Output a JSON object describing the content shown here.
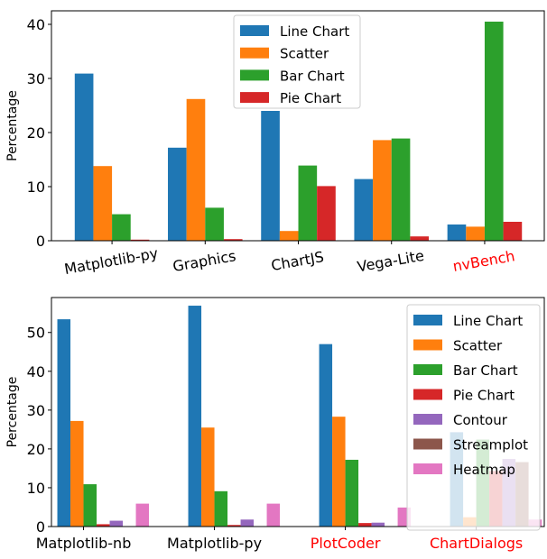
{
  "chart_data": [
    {
      "type": "bar",
      "ylabel": "Percentage",
      "xlabel": "",
      "ylim": [
        0,
        42.5
      ],
      "yticks": [
        0,
        10,
        20,
        30,
        40
      ],
      "categories": [
        "Matplotlib-py",
        "Graphics",
        "ChartJS",
        "Vega-Lite",
        "nvBench"
      ],
      "category_colors": [
        "#000000",
        "#000000",
        "#000000",
        "#000000",
        "#ff0000"
      ],
      "legend_position": "upper-center",
      "series": [
        {
          "name": "Line Chart",
          "color": "#1f77b4",
          "values": [
            30.9,
            17.2,
            24.0,
            11.4,
            3.0
          ]
        },
        {
          "name": "Scatter",
          "color": "#ff7f0e",
          "values": [
            13.8,
            26.2,
            1.8,
            18.6,
            2.6
          ]
        },
        {
          "name": "Bar Chart",
          "color": "#2ca02c",
          "values": [
            4.9,
            6.1,
            13.9,
            18.9,
            40.5
          ]
        },
        {
          "name": "Pie Chart",
          "color": "#d62728",
          "values": [
            0.2,
            0.3,
            10.1,
            0.8,
            3.5
          ]
        }
      ]
    },
    {
      "type": "bar",
      "ylabel": "Percentage",
      "xlabel": "",
      "ylim": [
        0,
        59
      ],
      "yticks": [
        0,
        10,
        20,
        30,
        40,
        50
      ],
      "categories": [
        "Matplotlib-nb",
        "Matplotlib-py",
        "PlotCoder",
        "ChartDialogs"
      ],
      "category_colors": [
        "#000000",
        "#000000",
        "#ff0000",
        "#ff0000"
      ],
      "legend_position": "upper-right",
      "series": [
        {
          "name": "Line Chart",
          "color": "#1f77b4",
          "values": [
            53.4,
            56.9,
            47.0,
            24.3
          ]
        },
        {
          "name": "Scatter",
          "color": "#ff7f0e",
          "values": [
            27.2,
            25.5,
            28.3,
            2.4
          ]
        },
        {
          "name": "Bar Chart",
          "color": "#2ca02c",
          "values": [
            10.9,
            9.1,
            17.2,
            22.4
          ]
        },
        {
          "name": "Pie Chart",
          "color": "#d62728",
          "values": [
            0.6,
            0.4,
            0.9,
            14.3
          ]
        },
        {
          "name": "Contour",
          "color": "#9467bd",
          "values": [
            1.5,
            1.8,
            1.0,
            17.4
          ]
        },
        {
          "name": "Streamplot",
          "color": "#8c564b",
          "values": [
            0,
            0,
            0,
            16.6
          ]
        },
        {
          "name": "Heatmap",
          "color": "#e377c2",
          "values": [
            5.9,
            5.9,
            4.9,
            1.8
          ]
        }
      ]
    }
  ]
}
